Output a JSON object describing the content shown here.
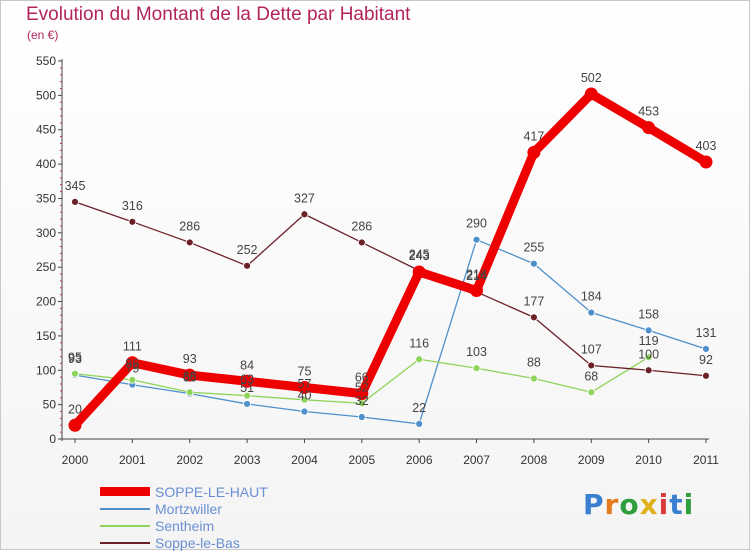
{
  "header": {
    "title": "Evolution du Montant de la Dette par Habitant",
    "unit": "(en €)"
  },
  "logo": {
    "text": "Proxiti",
    "colors": [
      "#3a7fd0",
      "#e57a1f",
      "#2f9e3c",
      "#e0b21a",
      "#d93b3b",
      "#3a7fd0",
      "#2f9e3c"
    ]
  },
  "chart_data": {
    "type": "line",
    "title": "Evolution du Montant de la Dette par Habitant",
    "ylabel": "(en €)",
    "xlabel": "",
    "x": [
      "2000",
      "2001",
      "2002",
      "2003",
      "2004",
      "2005",
      "2006",
      "2007",
      "2008",
      "2009",
      "2010",
      "2011"
    ],
    "ylim": [
      0,
      550
    ],
    "yticks": [
      0,
      50,
      100,
      150,
      200,
      250,
      300,
      350,
      400,
      450,
      500,
      550
    ],
    "grid": false,
    "legend_position": "bottom-left",
    "series": [
      {
        "name": "SOPPE-LE-HAUT",
        "color": "#ee0000",
        "values": [
          20,
          111,
          93,
          84,
          75,
          66,
          243,
          216,
          417,
          502,
          453,
          403
        ],
        "show_labels": true
      },
      {
        "name": "Mortzwiller",
        "color": "#4f90cc",
        "values": [
          93,
          79,
          66,
          51,
          40,
          32,
          22,
          290,
          255,
          184,
          158,
          131
        ],
        "show_labels": true
      },
      {
        "name": "Sentheim",
        "color": "#8fd45a",
        "values": [
          95,
          86,
          68,
          63,
          57,
          52,
          116,
          103,
          88,
          68,
          119,
          null
        ],
        "show_labels": true
      },
      {
        "name": "Soppe-le-Bas",
        "color": "#6b2028",
        "values": [
          345,
          316,
          286,
          252,
          327,
          286,
          245,
          214,
          177,
          107,
          100,
          92
        ],
        "show_labels": true
      }
    ]
  }
}
